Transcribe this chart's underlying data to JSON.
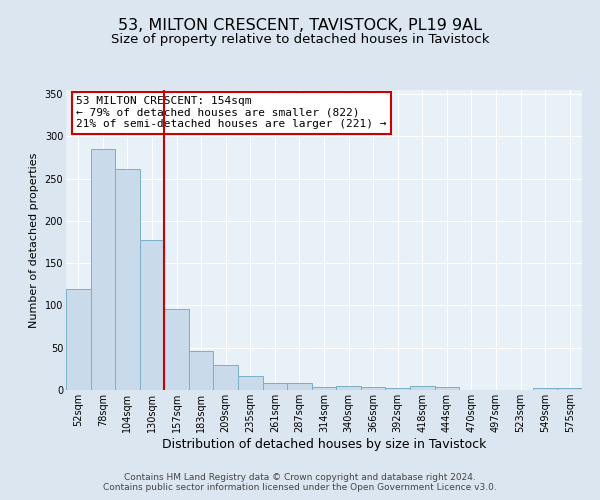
{
  "title": "53, MILTON CRESCENT, TAVISTOCK, PL19 9AL",
  "subtitle": "Size of property relative to detached houses in Tavistock",
  "xlabel": "Distribution of detached houses by size in Tavistock",
  "ylabel": "Number of detached properties",
  "categories": [
    "52sqm",
    "78sqm",
    "104sqm",
    "130sqm",
    "157sqm",
    "183sqm",
    "209sqm",
    "235sqm",
    "261sqm",
    "287sqm",
    "314sqm",
    "340sqm",
    "366sqm",
    "392sqm",
    "418sqm",
    "444sqm",
    "470sqm",
    "497sqm",
    "523sqm",
    "549sqm",
    "575sqm"
  ],
  "values": [
    120,
    285,
    262,
    178,
    96,
    46,
    29,
    16,
    8,
    8,
    3,
    5,
    3,
    2,
    5,
    3,
    0,
    0,
    0,
    2,
    2
  ],
  "bar_color": "#c9daea",
  "bar_edge_color": "#7aafc8",
  "bar_edge_width": 0.7,
  "vline_color": "#cc0000",
  "annotation_title": "53 MILTON CRESCENT: 154sqm",
  "annotation_line1": "← 79% of detached houses are smaller (822)",
  "annotation_line2": "21% of semi-detached houses are larger (221) →",
  "annotation_box_facecolor": "white",
  "annotation_box_edgecolor": "#cc0000",
  "ylim": [
    0,
    355
  ],
  "yticks": [
    0,
    50,
    100,
    150,
    200,
    250,
    300,
    350
  ],
  "background_color": "#dce6f0",
  "plot_background_color": "#e8f0f8",
  "footer_line1": "Contains HM Land Registry data © Crown copyright and database right 2024.",
  "footer_line2": "Contains public sector information licensed under the Open Government Licence v3.0.",
  "title_fontsize": 11.5,
  "subtitle_fontsize": 9.5,
  "xlabel_fontsize": 9,
  "ylabel_fontsize": 8,
  "tick_fontsize": 7,
  "annotation_fontsize": 8,
  "footer_fontsize": 6.5
}
